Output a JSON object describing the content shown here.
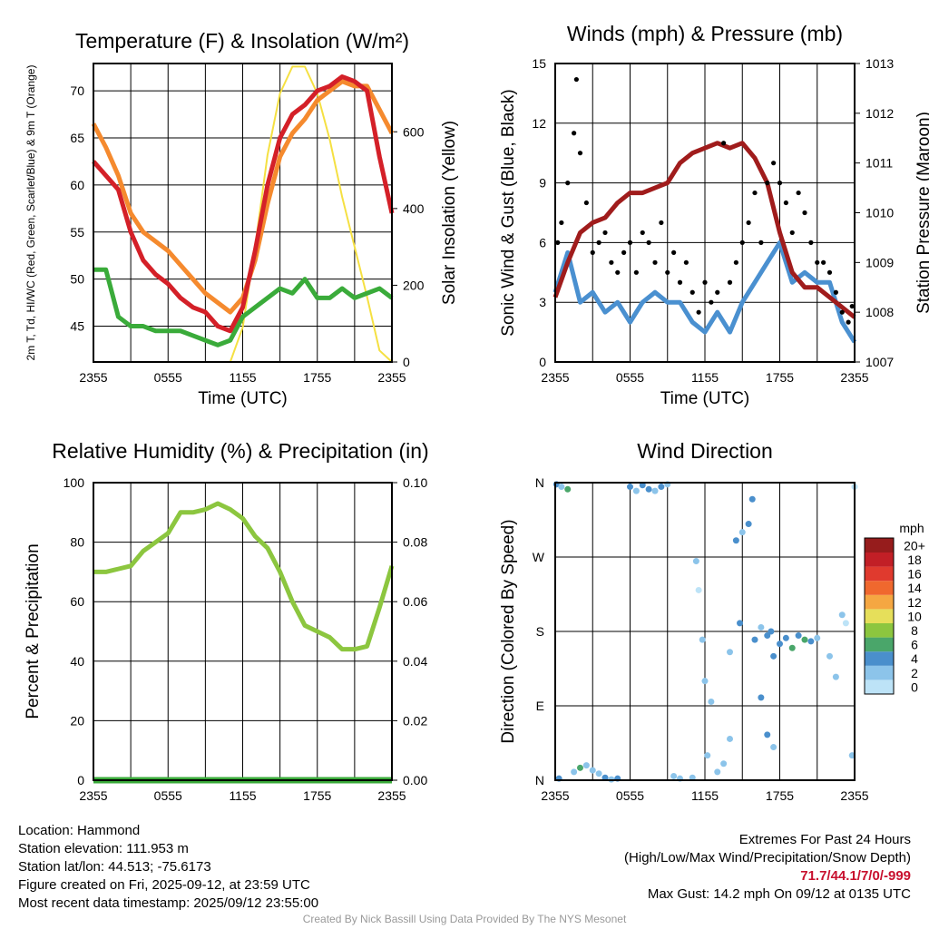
{
  "chart_data": [
    {
      "type": "line",
      "title": "Temperature (F) & Insolation (W/m²)",
      "xlabel": "Time (UTC)",
      "ylabel": "2m T, Td, HI/WC (Red, Green, Scarlet/Blue) & 9m T (Orange)",
      "y2label": "Solar Insolation (Yellow)",
      "xticks": [
        "2355",
        "0555",
        "1155",
        "1755",
        "2355"
      ],
      "yticks": [
        45,
        50,
        55,
        60,
        65,
        70
      ],
      "y2ticks": [
        0,
        200,
        400,
        600
      ],
      "ylim": [
        41.2,
        72.9
      ],
      "y2lim": [
        0,
        778
      ],
      "hours": [
        0,
        1,
        2,
        3,
        4,
        5,
        6,
        7,
        8,
        9,
        10,
        11,
        12,
        13,
        14,
        15,
        16,
        17,
        18,
        19,
        20,
        21,
        22,
        23,
        24
      ],
      "series": [
        {
          "name": "Solar",
          "axis": "y2",
          "color": "#f5e042",
          "values": [
            0,
            0,
            0,
            0,
            0,
            0,
            0,
            0,
            0,
            0,
            0,
            0,
            90,
            300,
            540,
            700,
            770,
            770,
            700,
            580,
            430,
            300,
            170,
            30,
            0
          ]
        },
        {
          "name": "9m T",
          "color": "#f58a2e",
          "values": [
            66.5,
            64,
            61,
            57,
            55,
            54,
            53,
            51.5,
            50,
            48.5,
            47.5,
            46.5,
            48,
            52,
            58,
            63,
            65.5,
            67,
            69,
            70,
            71,
            70.5,
            70.5,
            68,
            65.5
          ]
        },
        {
          "name": "2m Td",
          "color": "#3aab3a",
          "values": [
            51,
            51,
            46,
            45,
            45,
            44.5,
            44.5,
            44.5,
            44,
            43.5,
            43,
            43.5,
            46,
            47,
            48,
            49,
            48.5,
            50,
            48,
            48,
            49,
            48,
            48.5,
            49,
            48
          ]
        },
        {
          "name": "2m T",
          "color": "#d42028",
          "values": [
            62.5,
            61,
            59.5,
            55,
            52,
            50.5,
            49.5,
            48,
            47,
            46.5,
            45,
            44.5,
            47,
            53,
            60,
            65,
            67.5,
            68.5,
            70,
            70.5,
            71.5,
            71,
            70,
            63,
            57
          ]
        }
      ]
    },
    {
      "type": "line",
      "title": "Winds (mph) & Pressure (mb)",
      "xlabel": "Time (UTC)",
      "ylabel": "Sonic Wind & Gust (Blue, Black)",
      "y2label": "Station Pressure (Maroon)",
      "xticks": [
        "2355",
        "0555",
        "1155",
        "1755",
        "2355"
      ],
      "yticks": [
        0,
        3,
        6,
        9,
        12,
        15
      ],
      "y2ticks": [
        1007,
        1008,
        1009,
        1010,
        1011,
        1012,
        1013
      ],
      "ylim": [
        0,
        15
      ],
      "y2lim": [
        1007,
        1013
      ],
      "hours": [
        0,
        1,
        2,
        3,
        4,
        5,
        6,
        7,
        8,
        9,
        10,
        11,
        12,
        13,
        14,
        15,
        16,
        17,
        18,
        19,
        20,
        21,
        22,
        23,
        24
      ],
      "series": [
        {
          "name": "Sonic Wind",
          "color": "#4a90d0",
          "values": [
            3.5,
            5.5,
            3,
            3.5,
            2.5,
            3,
            2,
            3,
            3.5,
            3,
            3,
            2,
            1.5,
            2.5,
            1.5,
            3,
            4,
            5,
            6,
            4,
            4.5,
            4,
            4,
            2,
            1
          ]
        },
        {
          "name": "Station Pressure",
          "axis": "y2",
          "color": "#a01c1c",
          "values": [
            1008.3,
            1009,
            1009.6,
            1009.8,
            1009.9,
            1010.2,
            1010.4,
            1010.4,
            1010.5,
            1010.6,
            1011,
            1011.2,
            1011.3,
            1011.4,
            1011.3,
            1011.4,
            1011.1,
            1010.6,
            1009.6,
            1008.8,
            1008.5,
            1008.5,
            1008.3,
            1008.1,
            1007.9
          ]
        }
      ],
      "gusts": [
        [
          0.2,
          6
        ],
        [
          0.5,
          7
        ],
        [
          1,
          9
        ],
        [
          1.5,
          11.5
        ],
        [
          1.7,
          14.2
        ],
        [
          2,
          10.5
        ],
        [
          2.5,
          8
        ],
        [
          3,
          5.5
        ],
        [
          3.5,
          6
        ],
        [
          4,
          6.5
        ],
        [
          4.5,
          5
        ],
        [
          5,
          4.5
        ],
        [
          5.5,
          5.5
        ],
        [
          6,
          6
        ],
        [
          6.5,
          4.5
        ],
        [
          7,
          6.5
        ],
        [
          7.5,
          6
        ],
        [
          8,
          5
        ],
        [
          8.5,
          7
        ],
        [
          9,
          4.5
        ],
        [
          9.5,
          5.5
        ],
        [
          10,
          4
        ],
        [
          10.5,
          5
        ],
        [
          11,
          3.5
        ],
        [
          11.5,
          2.5
        ],
        [
          12,
          4
        ],
        [
          12.5,
          3
        ],
        [
          13,
          3.5
        ],
        [
          13.5,
          11
        ],
        [
          14,
          4
        ],
        [
          14.5,
          5
        ],
        [
          15,
          6
        ],
        [
          15.5,
          7
        ],
        [
          16,
          8.5
        ],
        [
          16.5,
          6
        ],
        [
          17,
          9
        ],
        [
          17.5,
          10
        ],
        [
          18,
          9
        ],
        [
          18.5,
          8
        ],
        [
          19,
          6.5
        ],
        [
          19.5,
          8.5
        ],
        [
          20,
          7.5
        ],
        [
          20.5,
          6
        ],
        [
          21,
          5
        ],
        [
          21.5,
          5
        ],
        [
          22,
          4.5
        ],
        [
          22.5,
          3.5
        ],
        [
          23,
          2.5
        ],
        [
          23.5,
          2
        ],
        [
          23.8,
          2.8
        ]
      ]
    },
    {
      "type": "line",
      "title": "Relative Humidity (%) & Precipitation (in)",
      "ylabel": "Percent & Precipitation",
      "xticks": [
        "2355",
        "0555",
        "1155",
        "1755",
        "2355"
      ],
      "yticks": [
        0,
        20,
        40,
        60,
        80,
        100
      ],
      "y2ticks": [
        "0.00",
        "0.02",
        "0.04",
        "0.06",
        "0.08",
        "0.10"
      ],
      "ylim": [
        0,
        100
      ],
      "y2lim": [
        0,
        0.1
      ],
      "hours": [
        0,
        1,
        2,
        3,
        4,
        5,
        6,
        7,
        8,
        9,
        10,
        11,
        12,
        13,
        14,
        15,
        16,
        17,
        18,
        19,
        20,
        21,
        22,
        23,
        24
      ],
      "series": [
        {
          "name": "Relative Humidity",
          "color": "#8cc63f",
          "values": [
            70,
            70,
            71,
            72,
            77,
            80,
            83,
            90,
            90,
            91,
            93,
            91,
            88,
            82,
            78,
            70,
            60,
            52,
            50,
            48,
            44,
            44,
            45,
            58,
            72
          ]
        },
        {
          "name": "Precipitation",
          "axis": "y2",
          "color": "#3aab3a",
          "values": [
            0,
            0,
            0,
            0,
            0,
            0,
            0,
            0,
            0,
            0,
            0,
            0,
            0,
            0,
            0,
            0,
            0,
            0,
            0,
            0,
            0,
            0,
            0,
            0,
            0
          ]
        }
      ]
    },
    {
      "type": "scatter",
      "title": "Wind Direction",
      "ylabel": "Direction (Colored By Speed)",
      "xticks": [
        "2355",
        "0555",
        "1155",
        "1755",
        "2355"
      ],
      "ylabels": [
        "N",
        "E",
        "S",
        "W",
        "N"
      ],
      "ylim": [
        0,
        360
      ],
      "colorbar": {
        "title": "mph",
        "labels": [
          "0",
          "2",
          "4",
          "6",
          "8",
          "10",
          "12",
          "14",
          "16",
          "18",
          "20+"
        ],
        "colors": [
          "#bde3f7",
          "#8cc4ea",
          "#4a8fcc",
          "#4aa66a",
          "#8cc63f",
          "#e6df5a",
          "#f5a742",
          "#f0682e",
          "#e03a2e",
          "#c21f26",
          "#961c1c"
        ]
      },
      "points": [
        [
          0.1,
          358,
          4
        ],
        [
          0.5,
          355,
          3
        ],
        [
          1,
          352,
          6
        ],
        [
          0.3,
          2,
          4
        ],
        [
          1.5,
          10,
          2
        ],
        [
          2,
          15,
          6
        ],
        [
          2.5,
          18,
          3
        ],
        [
          3,
          12,
          2
        ],
        [
          3.5,
          8,
          3
        ],
        [
          4,
          3,
          4
        ],
        [
          4.5,
          1,
          3
        ],
        [
          5,
          2,
          5
        ],
        [
          6,
          355,
          4
        ],
        [
          6.5,
          350,
          3
        ],
        [
          7,
          357,
          4
        ],
        [
          7.5,
          352,
          5
        ],
        [
          8,
          350,
          3
        ],
        [
          8.5,
          355,
          4
        ],
        [
          9,
          358,
          2
        ],
        [
          9.5,
          5,
          3
        ],
        [
          10,
          2,
          3
        ],
        [
          11,
          3,
          2
        ],
        [
          11.3,
          265,
          2
        ],
        [
          11.5,
          230,
          1
        ],
        [
          11.8,
          170,
          2
        ],
        [
          12,
          120,
          2
        ],
        [
          12.5,
          95,
          2
        ],
        [
          12.2,
          30,
          2
        ],
        [
          13,
          10,
          3
        ],
        [
          13.5,
          20,
          2
        ],
        [
          14,
          50,
          3
        ],
        [
          14.5,
          290,
          4
        ],
        [
          15,
          300,
          3
        ],
        [
          15.5,
          310,
          4
        ],
        [
          15.8,
          340,
          5
        ],
        [
          16,
          170,
          4
        ],
        [
          16.5,
          185,
          3
        ],
        [
          17,
          175,
          4
        ],
        [
          17.3,
          180,
          5
        ],
        [
          17.5,
          150,
          4
        ],
        [
          18,
          165,
          5
        ],
        [
          18.5,
          172,
          4
        ],
        [
          19,
          160,
          6
        ],
        [
          19.5,
          175,
          5
        ],
        [
          20,
          170,
          6
        ],
        [
          20.5,
          168,
          4
        ],
        [
          21,
          172,
          3
        ],
        [
          22,
          150,
          2
        ],
        [
          22.5,
          125,
          2
        ],
        [
          23,
          200,
          2
        ],
        [
          23.3,
          190,
          1
        ],
        [
          23.8,
          30,
          3
        ],
        [
          24,
          355,
          1
        ],
        [
          17,
          55,
          4
        ],
        [
          17.5,
          40,
          3
        ],
        [
          16.5,
          100,
          5
        ],
        [
          14,
          155,
          3
        ],
        [
          14.8,
          190,
          5
        ]
      ]
    }
  ],
  "info": {
    "location": "Location: Hammond",
    "elevation": "Station elevation: 111.953 m",
    "latlon": "Station lat/lon: 44.513; -75.6173",
    "created": "Figure created on Fri, 2025-09-12, at 23:59 UTC",
    "recent": "Most recent data timestamp: 2025/09/12 23:55:00"
  },
  "extremes": {
    "title": "Extremes For Past 24 Hours",
    "subtitle": "(High/Low/Max Wind/Precipitation/Snow Depth)",
    "values": "71.7/44.1/7/0/-999",
    "gust": "Max Gust: 14.2 mph On 09/12 at 0135 UTC"
  },
  "credit": "Created By Nick Bassill Using Data Provided By The NYS Mesonet"
}
